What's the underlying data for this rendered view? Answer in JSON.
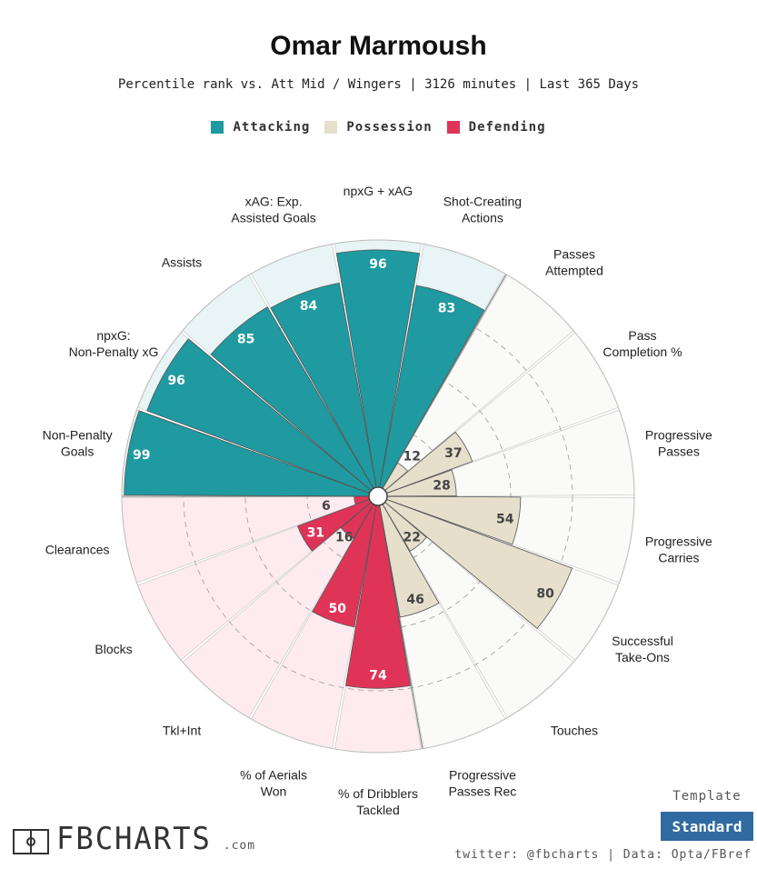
{
  "header": {
    "title": "Omar Marmoush",
    "subtitle": "Percentile rank vs. Att Mid / Wingers | 3126 minutes | Last 365 Days"
  },
  "legend": [
    {
      "label": "Attacking",
      "color": "#1f9aa0"
    },
    {
      "label": "Possession",
      "color": "#e5dfcc"
    },
    {
      "label": "Defending",
      "color": "#df3458"
    }
  ],
  "footer": {
    "template_label": "Template",
    "template_value": "Standard",
    "logo_text": "FBCHARTS",
    "logo_domain": ".com",
    "credit": "twitter: @fbcharts | Data: Opta/FBref"
  },
  "chart_data": {
    "type": "polar-bar",
    "scale": [
      0,
      100
    ],
    "categories": [
      {
        "label": "Non-Penalty Goals",
        "value": 99,
        "group": "Attacking"
      },
      {
        "label": "npxG: Non-Penalty xG",
        "value": 96,
        "group": "Attacking"
      },
      {
        "label": "Assists",
        "value": 85,
        "group": "Attacking"
      },
      {
        "label": "xAG: Exp. Assisted Goals",
        "value": 84,
        "group": "Attacking"
      },
      {
        "label": "npxG + xAG",
        "value": 96,
        "group": "Attacking"
      },
      {
        "label": "Shot-Creating Actions",
        "value": 83,
        "group": "Attacking"
      },
      {
        "label": "Passes Attempted",
        "value": 12,
        "group": "Possession"
      },
      {
        "label": "Pass Completion %",
        "value": 37,
        "group": "Possession"
      },
      {
        "label": "Progressive Passes",
        "value": 28,
        "group": "Possession"
      },
      {
        "label": "Progressive Carries",
        "value": 54,
        "group": "Possession"
      },
      {
        "label": "Successful Take-Ons",
        "value": 80,
        "group": "Possession"
      },
      {
        "label": "Touches",
        "value": 22,
        "group": "Possession"
      },
      {
        "label": "Progressive Passes Rec",
        "value": 46,
        "group": "Possession"
      },
      {
        "label": "% of Dribblers Tackled",
        "value": 74,
        "group": "Defending"
      },
      {
        "label": "% of Aerials Won",
        "value": 50,
        "group": "Defending"
      },
      {
        "label": "Tkl+Int",
        "value": 16,
        "group": "Defending"
      },
      {
        "label": "Blocks",
        "value": 31,
        "group": "Defending"
      },
      {
        "label": "Clearances",
        "value": 6,
        "group": "Defending"
      }
    ],
    "group_colors": {
      "Attacking": {
        "bar": "#1f9aa0",
        "bg": "#e8f4f5",
        "text": "#ffffff"
      },
      "Possession": {
        "bar": "#e5dfcc",
        "bg": "#fafaf8",
        "text": "#444444"
      },
      "Defending": {
        "bar": "#df3458",
        "bg": "#fdebef",
        "text": "#ffffff"
      }
    }
  }
}
